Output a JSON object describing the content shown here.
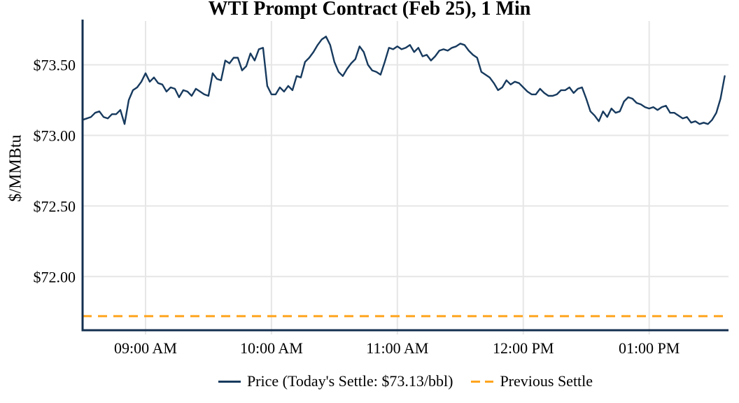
{
  "chart_data": {
    "type": "line",
    "title": "WTI Prompt Contract (Feb 25), 1 Min",
    "ylabel": "$/MMBtu",
    "xlabel": "",
    "grid": true,
    "legend_position": "bottom-center",
    "x_tick_labels": [
      "09:00 AM",
      "10:00 AM",
      "11:00 AM",
      "12:00 PM",
      "01:00 PM"
    ],
    "x_tick_hours": [
      9,
      10,
      11,
      12,
      13
    ],
    "x_range_hours": [
      8.5,
      13.63
    ],
    "x_start_hour": 8.5,
    "x_start_label": "08:30 AM",
    "x_interval_minutes": 2,
    "y_tick_labels": [
      "$73.50",
      "$73.00",
      "$72.50",
      "$72.00"
    ],
    "y_tick_values": [
      73.5,
      73.0,
      72.5,
      72.0
    ],
    "ylim": [
      71.62,
      73.81
    ],
    "today_settle": "$73.13/bbl",
    "previous_settle_value": 71.72,
    "colors": {
      "price_line": "#173a5e",
      "axis": "#143050",
      "previous_settle": "#ffa41d",
      "grid": "#e6e6e6",
      "text": "#000000"
    },
    "series": [
      {
        "name": "Price (Today's Settle: $73.13/bbl)",
        "style": "solid",
        "color": "#173a5e",
        "values": [
          73.11,
          73.12,
          73.13,
          73.16,
          73.17,
          73.13,
          73.12,
          73.15,
          73.15,
          73.18,
          73.08,
          73.25,
          73.32,
          73.34,
          73.38,
          73.44,
          73.38,
          73.41,
          73.37,
          73.36,
          73.31,
          73.34,
          73.33,
          73.27,
          73.32,
          73.31,
          73.28,
          73.33,
          73.31,
          73.29,
          73.28,
          73.44,
          73.4,
          73.39,
          73.53,
          73.51,
          73.55,
          73.55,
          73.46,
          73.49,
          73.58,
          73.53,
          73.61,
          73.62,
          73.35,
          73.29,
          73.29,
          73.34,
          73.31,
          73.35,
          73.32,
          73.42,
          73.41,
          73.52,
          73.55,
          73.59,
          73.64,
          73.68,
          73.7,
          73.64,
          73.52,
          73.45,
          73.42,
          73.47,
          73.51,
          73.54,
          73.63,
          73.59,
          73.5,
          73.46,
          73.45,
          73.43,
          73.52,
          73.62,
          73.61,
          73.63,
          73.61,
          73.62,
          73.64,
          73.59,
          73.62,
          73.56,
          73.57,
          73.53,
          73.56,
          73.6,
          73.61,
          73.6,
          73.62,
          73.63,
          73.65,
          73.64,
          73.6,
          73.57,
          73.55,
          73.45,
          73.43,
          73.41,
          73.37,
          73.32,
          73.34,
          73.39,
          73.36,
          73.38,
          73.37,
          73.34,
          73.31,
          73.29,
          73.29,
          73.33,
          73.3,
          73.28,
          73.28,
          73.29,
          73.32,
          73.32,
          73.34,
          73.3,
          73.33,
          73.34,
          73.26,
          73.17,
          73.14,
          73.1,
          73.17,
          73.13,
          73.19,
          73.16,
          73.17,
          73.24,
          73.27,
          73.26,
          73.23,
          73.22,
          73.2,
          73.19,
          73.2,
          73.18,
          73.2,
          73.21,
          73.16,
          73.16,
          73.14,
          73.12,
          73.13,
          73.09,
          73.1,
          73.08,
          73.09,
          73.08,
          73.11,
          73.16,
          73.26,
          73.42
        ]
      },
      {
        "name": "Previous Settle",
        "style": "dashed",
        "color": "#ffa41d",
        "value": 71.72
      }
    ]
  }
}
